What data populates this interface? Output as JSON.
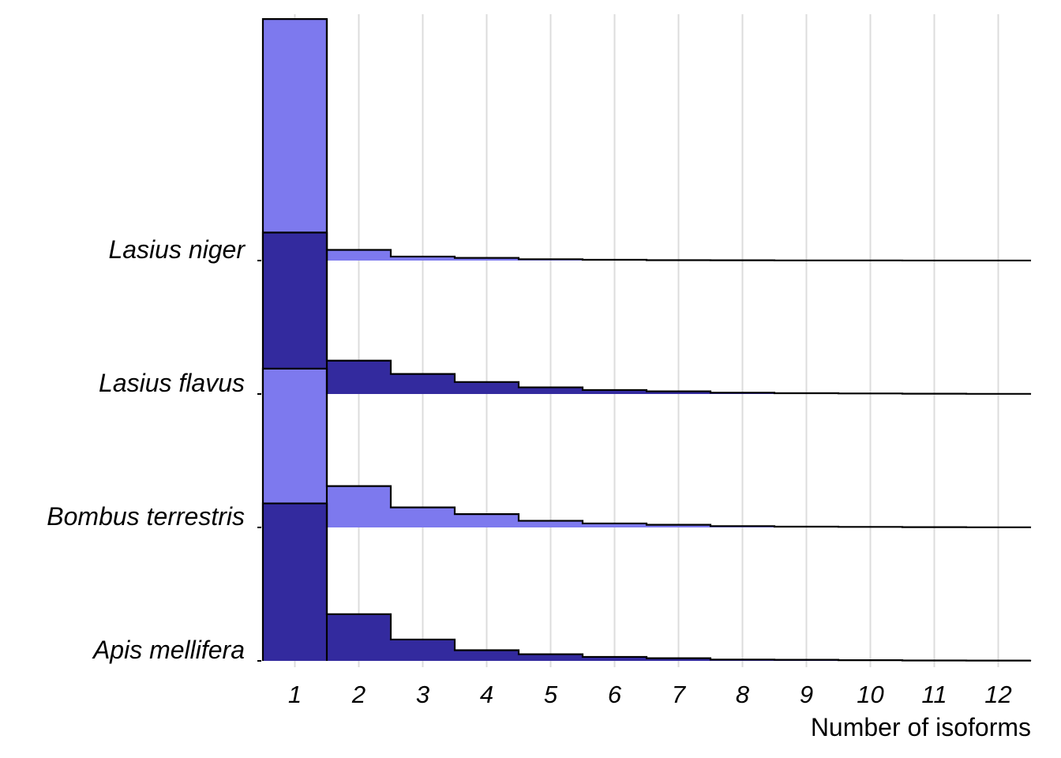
{
  "chart_data": {
    "type": "ridgeline histogram",
    "xlabel": "Number of isoforms",
    "ylabel": "",
    "x_categories": [
      "1",
      "2",
      "3",
      "4",
      "5",
      "6",
      "7",
      "8",
      "9",
      "10",
      "11",
      "12"
    ],
    "series": [
      {
        "name": "Apis mellifera",
        "color": "#332a9e",
        "values": [
          1.18,
          0.35,
          0.16,
          0.08,
          0.05,
          0.03,
          0.02,
          0.01,
          0.008,
          0.005,
          0.003,
          0.002
        ]
      },
      {
        "name": "Bombus terrestris",
        "color": "#7d79ee",
        "values": [
          1.19,
          0.31,
          0.15,
          0.1,
          0.05,
          0.03,
          0.02,
          0.01,
          0.006,
          0.004,
          0.002,
          0.001
        ]
      },
      {
        "name": "Lasius flavus",
        "color": "#332a9e",
        "values": [
          1.21,
          0.25,
          0.15,
          0.09,
          0.05,
          0.03,
          0.02,
          0.01,
          0.006,
          0.004,
          0.002,
          0.001
        ]
      },
      {
        "name": "Lasius niger",
        "color": "#7d79ee",
        "values": [
          1.81,
          0.08,
          0.03,
          0.02,
          0.01,
          0.006,
          0.003,
          0.002,
          0.001,
          0.001,
          0.0005,
          0.0005
        ]
      }
    ],
    "grid": true,
    "legend": "none"
  }
}
